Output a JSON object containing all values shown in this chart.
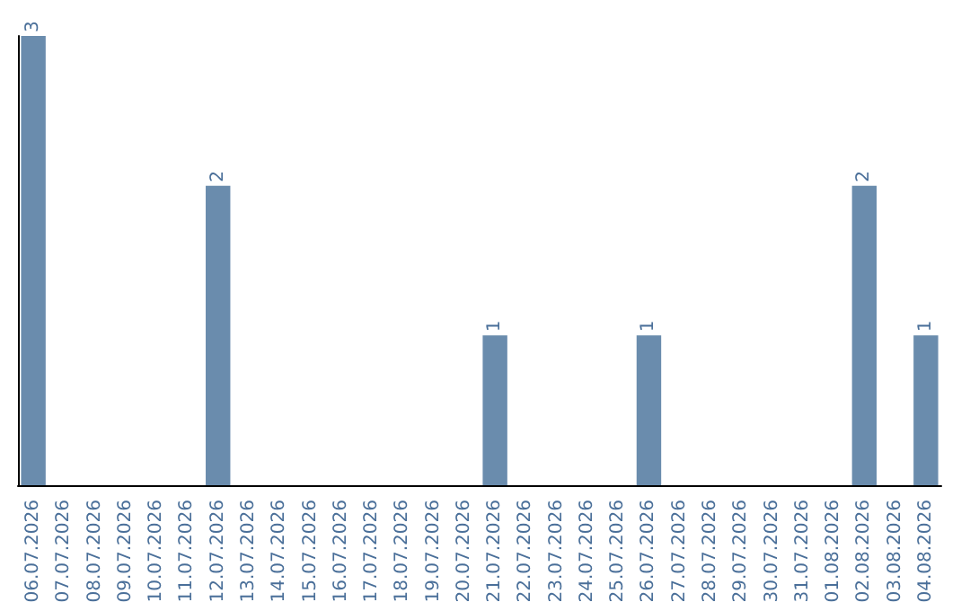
{
  "chart_data": {
    "type": "bar",
    "categories": [
      "06.07.2026",
      "07.07.2026",
      "08.07.2026",
      "09.07.2026",
      "10.07.2026",
      "11.07.2026",
      "12.07.2026",
      "13.07.2026",
      "14.07.2026",
      "15.07.2026",
      "16.07.2026",
      "17.07.2026",
      "18.07.2026",
      "19.07.2026",
      "20.07.2026",
      "21.07.2026",
      "22.07.2026",
      "23.07.2026",
      "24.07.2026",
      "25.07.2026",
      "26.07.2026",
      "27.07.2026",
      "28.07.2026",
      "29.07.2026",
      "30.07.2026",
      "31.07.2026",
      "01.08.2026",
      "02.08.2026",
      "03.08.2026",
      "04.08.2026"
    ],
    "values": [
      3,
      0,
      0,
      0,
      0,
      0,
      2,
      0,
      0,
      0,
      0,
      0,
      0,
      0,
      0,
      1,
      0,
      0,
      0,
      0,
      1,
      0,
      0,
      0,
      0,
      0,
      0,
      2,
      0,
      1
    ],
    "value_labels": [
      "3",
      null,
      null,
      null,
      null,
      null,
      "2",
      null,
      null,
      null,
      null,
      null,
      null,
      null,
      null,
      "1",
      null,
      null,
      null,
      null,
      "1",
      null,
      null,
      null,
      null,
      null,
      null,
      "2",
      null,
      "1"
    ],
    "color": "#6a8cad",
    "tick_labels": "x"
  }
}
